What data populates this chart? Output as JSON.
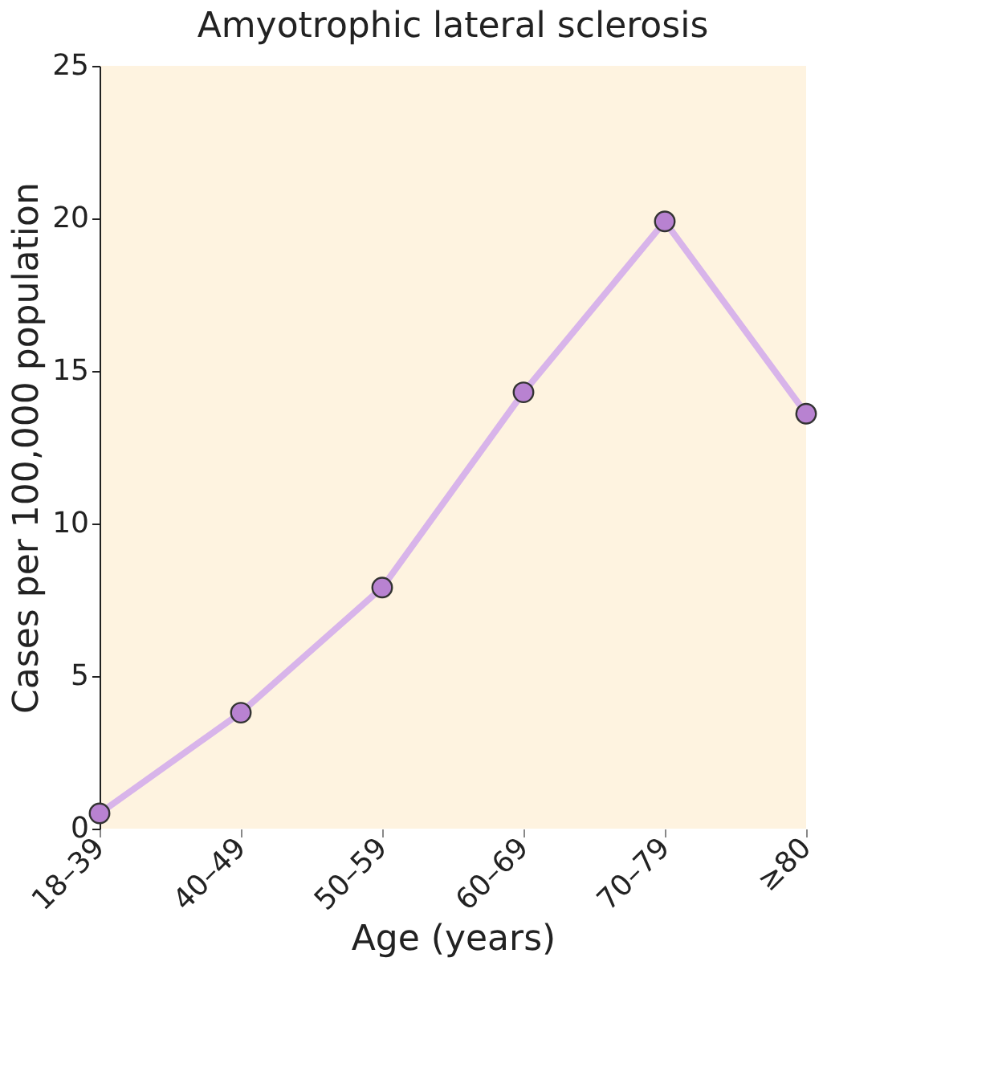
{
  "chart_data": {
    "type": "line",
    "title": "Amyotrophic lateral sclerosis",
    "xlabel": "Age (years)",
    "ylabel": "Cases per 100,000 population",
    "categories": [
      "18–39",
      "40–49",
      "50–59",
      "60–69",
      "70–79",
      "≥80"
    ],
    "series": [
      {
        "color": "#d8b4ea",
        "values": [
          0.5,
          3.8,
          7.9,
          14.3,
          19.9,
          13.6
        ]
      }
    ],
    "ylim": [
      0,
      25
    ],
    "yticks": [
      0,
      5,
      10,
      15,
      20,
      25
    ],
    "grid": false,
    "marker": "circle",
    "line_style": "solid"
  }
}
